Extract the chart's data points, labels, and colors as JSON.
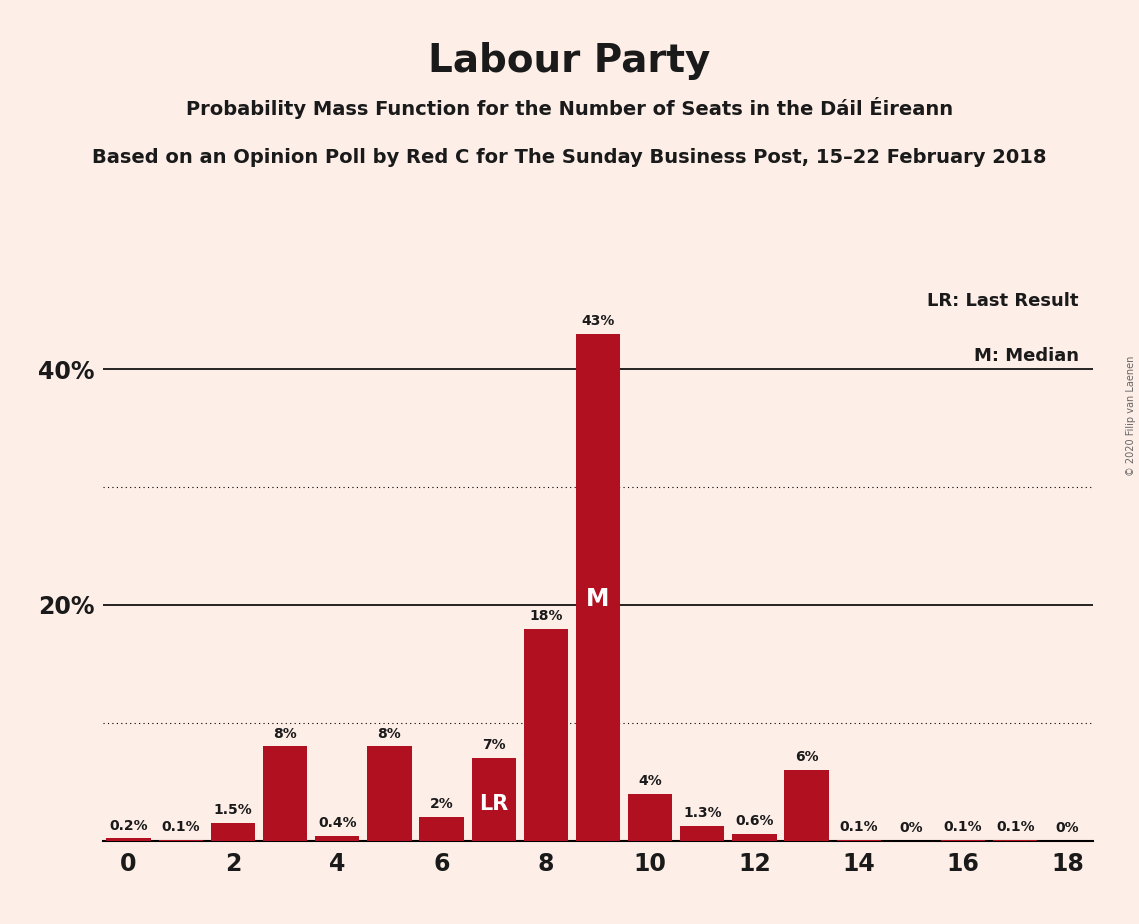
{
  "title": "Labour Party",
  "subtitle1": "Probability Mass Function for the Number of Seats in the Dáil Éireann",
  "subtitle2": "Based on an Opinion Poll by Red C for The Sunday Business Post, 15–22 February 2018",
  "copyright": "© 2020 Filip van Laenen",
  "seats": [
    0,
    1,
    2,
    3,
    4,
    5,
    6,
    7,
    8,
    9,
    10,
    11,
    12,
    13,
    14,
    15,
    16,
    17,
    18
  ],
  "probabilities": [
    0.2,
    0.1,
    1.5,
    8.0,
    0.4,
    8.0,
    2.0,
    7.0,
    18.0,
    43.0,
    4.0,
    1.3,
    0.6,
    6.0,
    0.1,
    0.0,
    0.1,
    0.1,
    0.0
  ],
  "labels": [
    "0.2%",
    "0.1%",
    "1.5%",
    "8%",
    "0.4%",
    "8%",
    "2%",
    "7%",
    "18%",
    "43%",
    "4%",
    "1.3%",
    "0.6%",
    "6%",
    "0.1%",
    "0%",
    "0.1%",
    "0.1%",
    "0%"
  ],
  "bar_color": "#b01020",
  "background_color": "#fdeee8",
  "last_result_seat": 7,
  "median_seat": 9,
  "lr_label": "LR",
  "median_label": "M",
  "legend_lr": "LR: Last Result",
  "legend_m": "M: Median",
  "solid_grid": [
    20,
    40
  ],
  "dotted_grid": [
    10,
    30
  ],
  "xlim": [
    -0.5,
    18.5
  ],
  "ylim": [
    0,
    47
  ],
  "xticks": [
    0,
    2,
    4,
    6,
    8,
    10,
    12,
    14,
    16,
    18
  ],
  "ytick_positions": [
    20,
    40
  ],
  "ytick_labels": [
    "20%",
    "40%"
  ]
}
